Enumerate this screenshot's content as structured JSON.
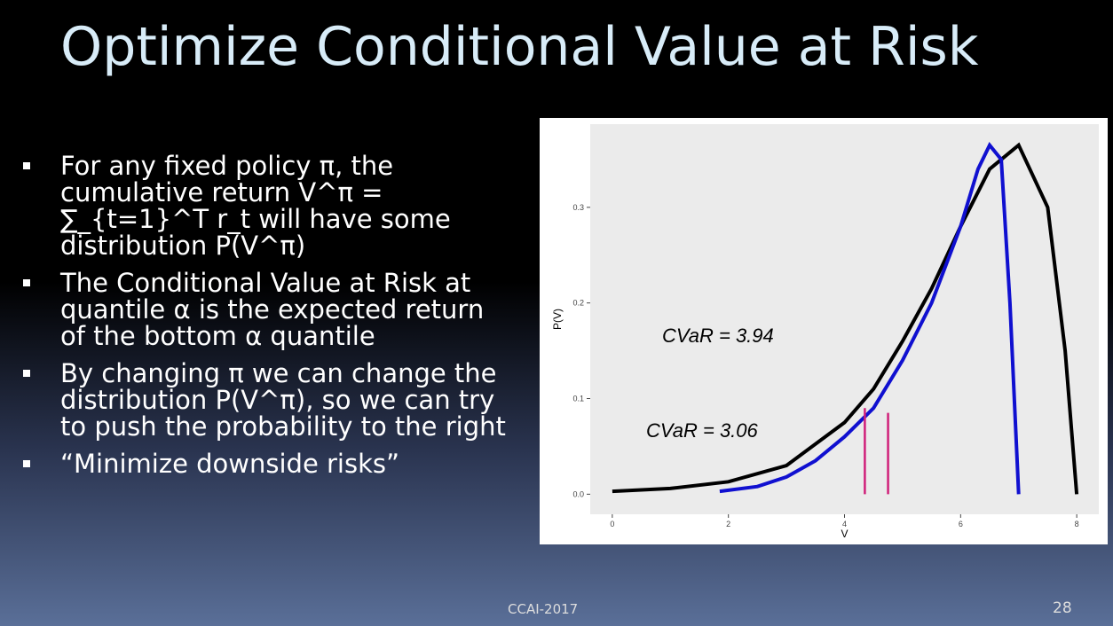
{
  "title": "Optimize Conditional Value at Risk",
  "bullets": [
    "For any fixed policy π, the cumulative return V^π = ∑_{t=1}^T r_t will have some distribution P(V^π)",
    "The Conditional Value at Risk at quantile α is the expected return of the bottom α quantile",
    "By changing π we can change the distribution P(V^π), so we can try to push the probability to the right",
    "“Minimize downside risks”"
  ],
  "footer": "CCAI-2017",
  "page_number": "28",
  "chart_data": {
    "type": "line",
    "xlabel": "V",
    "ylabel": "P(V)",
    "xlim": [
      -0.38,
      8.38
    ],
    "ylim": [
      -0.021,
      0.387
    ],
    "xticks": [
      0,
      2,
      4,
      6,
      8
    ],
    "yticks": [
      {
        "value": 0,
        "label": "0.0"
      },
      0.1,
      0.2,
      0.3
    ],
    "grid": false,
    "series": [
      {
        "color": "#000000",
        "x": [
          0,
          1,
          2,
          3,
          4,
          4.5,
          5,
          5.5,
          6,
          6.5,
          7,
          7.5,
          7.8,
          8
        ],
        "values": [
          0.003,
          0.006,
          0.013,
          0.03,
          0.075,
          0.11,
          0.16,
          0.215,
          0.28,
          0.34,
          0.365,
          0.3,
          0.15,
          0
        ]
      },
      {
        "color": "#1010d0",
        "x": [
          1.85,
          2.5,
          3,
          3.5,
          4,
          4.5,
          5,
          5.5,
          6,
          6.3,
          6.5,
          6.7,
          6.85,
          7
        ],
        "values": [
          0.003,
          0.008,
          0.018,
          0.035,
          0.06,
          0.09,
          0.14,
          0.2,
          0.28,
          0.34,
          0.365,
          0.35,
          0.2,
          0
        ]
      }
    ],
    "cutoffs": {
      "color": "#d0207a",
      "x": [
        4.35,
        4.75
      ],
      "values": [
        0.09,
        0.085
      ]
    },
    "annotations": [
      "CVaR = 3.94",
      "CVaR = 3.06"
    ]
  }
}
